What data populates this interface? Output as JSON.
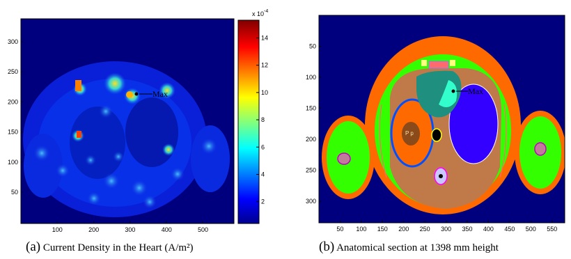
{
  "panel_a": {
    "caption_label": "(a)",
    "caption_text": "Current Density in the Heart",
    "caption_unit": "(A/m²)",
    "annotation": "Max",
    "x_ticks": [
      100,
      200,
      300,
      400,
      500
    ],
    "y_ticks": [
      50,
      100,
      150,
      200,
      250,
      300
    ],
    "colorbar": {
      "exponent_label": "x 10",
      "exponent_power": "-4",
      "ticks": [
        2,
        4,
        6,
        8,
        10,
        12,
        14
      ]
    }
  },
  "panel_b": {
    "caption_label": "(b)",
    "caption_text": "Anatomical section at 1398 mm height",
    "annotation": "Max",
    "x_ticks": [
      50,
      100,
      150,
      200,
      250,
      300,
      350,
      400,
      450,
      500,
      550
    ],
    "y_ticks": [
      50,
      100,
      150,
      200,
      250,
      300
    ],
    "organ_label": "P p"
  },
  "colors": {
    "background_blue": "#00007f",
    "skin_orange": "#ff6a00",
    "tissue_green": "#33ff00",
    "muscle_brown": "#c07a4a",
    "lung_purple": "#3300ff",
    "heart_teal": "#1f8f7f"
  }
}
